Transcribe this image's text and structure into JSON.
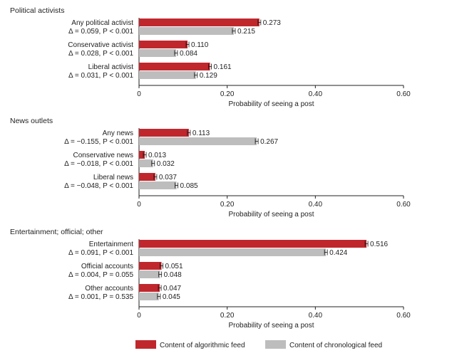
{
  "chart_data": {
    "type": "bar",
    "orientation": "horizontal",
    "xlim": [
      0,
      0.6
    ],
    "xticks": [
      "0",
      "0.20",
      "0.40",
      "0.60"
    ],
    "xlabel": "Probability of seeing a post",
    "colors": {
      "algorithmic": "#c0272d",
      "chronological": "#bdbdbd"
    },
    "legend": {
      "position": "bottom-center",
      "algorithmic": "Content of algorithmic feed",
      "chronological": "Content of chronological feed"
    },
    "panels": [
      {
        "title": "Political activists",
        "rows": [
          {
            "label": "Any political activist",
            "stats": "Δ = 0.059, P < 0.001",
            "algorithmic": 0.273,
            "chronological": 0.215,
            "algorithmic_label": "0.273",
            "chronological_label": "0.215"
          },
          {
            "label": "Conservative activist",
            "stats": "Δ = 0.028, P < 0.001",
            "algorithmic": 0.11,
            "chronological": 0.084,
            "algorithmic_label": "0.110",
            "chronological_label": "0.084"
          },
          {
            "label": "Liberal activist",
            "stats": "Δ = 0.031, P < 0.001",
            "algorithmic": 0.161,
            "chronological": 0.129,
            "algorithmic_label": "0.161",
            "chronological_label": "0.129"
          }
        ]
      },
      {
        "title": "News outlets",
        "rows": [
          {
            "label": "Any news",
            "stats": "Δ = −0.155, P < 0.001",
            "algorithmic": 0.113,
            "chronological": 0.267,
            "algorithmic_label": "0.113",
            "chronological_label": "0.267"
          },
          {
            "label": "Conservative news",
            "stats": "Δ = −0.018, P < 0.001",
            "algorithmic": 0.013,
            "chronological": 0.032,
            "algorithmic_label": "0.013",
            "chronological_label": "0.032"
          },
          {
            "label": "Liberal news",
            "stats": "Δ = −0.048, P < 0.001",
            "algorithmic": 0.037,
            "chronological": 0.085,
            "algorithmic_label": "0.037",
            "chronological_label": "0.085"
          }
        ]
      },
      {
        "title": "Entertainment; official; other",
        "rows": [
          {
            "label": "Entertainment",
            "stats": "Δ = 0.091, P < 0.001",
            "algorithmic": 0.516,
            "chronological": 0.424,
            "algorithmic_label": "0.516",
            "chronological_label": "0.424"
          },
          {
            "label": "Official accounts",
            "stats": "Δ = 0.004, P = 0.055",
            "algorithmic": 0.051,
            "chronological": 0.048,
            "algorithmic_label": "0.051",
            "chronological_label": "0.048"
          },
          {
            "label": "Other accounts",
            "stats": "Δ = 0.001, P = 0.535",
            "algorithmic": 0.047,
            "chronological": 0.045,
            "algorithmic_label": "0.047",
            "chronological_label": "0.045"
          }
        ]
      }
    ]
  }
}
